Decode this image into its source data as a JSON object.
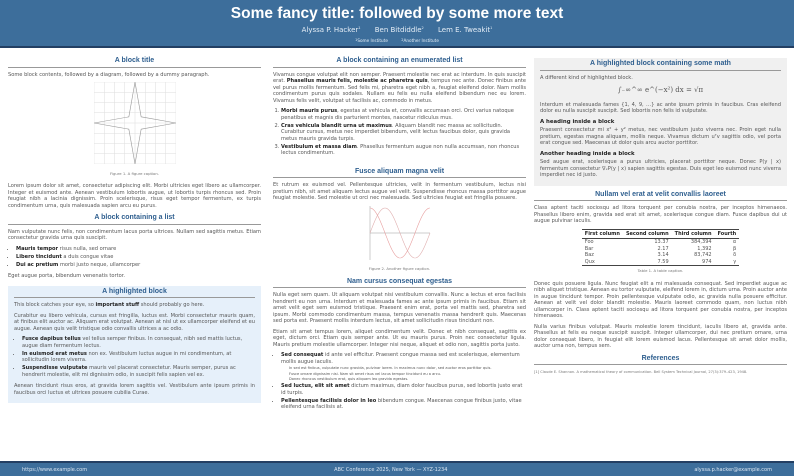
{
  "header": {
    "title": "Some fancy title: followed by some more text",
    "authors": [
      {
        "name": "Alyssa P. Hacker",
        "aff": "1"
      },
      {
        "name": "Ben Bitdiddle",
        "aff": "2"
      },
      {
        "name": "Lem E. Tweakit",
        "aff": "1"
      }
    ],
    "affiliations": [
      {
        "num": "1",
        "name": "Some Institute"
      },
      {
        "num": "2",
        "name": "Another Institute"
      }
    ]
  },
  "col1": {
    "b1_title": "A block title",
    "b1_intro": "Some block contents, followed by a diagram, followed by a dummy paragraph.",
    "b1_caption": "Figure 1. A figure caption.",
    "b1_para": "Lorem ipsum dolor sit amet, consectetur adipiscing elit. Morbi ultricies eget libero ac ullamcorper. Integer et euismod ante. Aenean vestibulum lobortis augue, ut lobortis turpis rhoncus sed. Proin feugiat nibh a lacinia dignissim. Proin scelerisque, risus eget tempor fermentum, ex turpis condimentum urna, quis malesuada sapien arcu eu purus.",
    "b2_title": "A block containing a list",
    "b2_intro": "Nam vulputate nunc felis, non condimentum lacus porta ultrices. Nullam sed sagittis metus. Etiam consectetur gravida urna quis suscipit.",
    "b2_list": [
      {
        "bold": "Mauris tempor",
        "text": " risus nulla, sed ornare"
      },
      {
        "bold": "Libero tincidunt",
        "text": " a duis congue vitae"
      },
      {
        "bold": "Dui ac pretium",
        "text": " morbi justo neque, ullamcorper"
      }
    ],
    "b2_outro": "Eget augue porta, bibendum venenatis tortor.",
    "b3_title": "A highlighted block",
    "b3_p1a": "This block catches your eye, so ",
    "b3_p1b": "important stuff",
    "b3_p1c": " should probably go here.",
    "b3_p2": "Curabitur eu libero vehicula, cursus est fringilla, luctus est. Morbi consectetur mauris quam, at finibus elit auctor ac. Aliquam erat volutpat. Aenean at nisl ut ex ullamcorper eleifend et eu augue. Aenean quis velit tristique odio convallis ultrices a ac odio.",
    "b3_list": [
      {
        "bold": "Fusce dapibus tellus",
        "text": " vel tellus semper finibus. In consequat, nibh sed mattis luctus, augue diam fermentum lectus."
      },
      {
        "bold": "In euismod erat metus",
        "text": " non ex. Vestibulum luctus augue in mi condimentum, at sollicitudin lorem viverra."
      },
      {
        "bold": "Suspendisse vulputate",
        "text": " mauris vel placerat consectetur. Mauris semper, purus ac hendrerit molestie, elit mi dignissim odio, in suscipit felis sapien vel ex."
      }
    ],
    "b3_p3": "Aenean tincidunt risus eros, at gravida lorem sagittis vel. Vestibulum ante ipsum primis in faucibus orci luctus et ultrices posuere cubilia Curae."
  },
  "col2": {
    "b1_title": "A block containing an enumerated list",
    "b1_p1a": "Vivamus congue volutpat elit non semper. Praesent molestie nec erat ac interdum. In quis suscipit erat. ",
    "b1_p1b": "Phasellus mauris felis, molestie ac pharetra quis",
    "b1_p1c": ", tempus nec ante. Donec finibus ante vel purus mollis fermentum. Sed felis mi, pharetra eget nibh a, feugiat eleifend dolor. Nam mollis condimentum purus quis sodales. Nullam eu felis eu nulla eleifend bibendum nec eu lorem. Vivamus felis velit, volutpat ut facilisis ac, commodo in metus.",
    "b1_list": [
      {
        "bold": "Morbi mauris purus",
        "text": ", egestas at vehicula et, convallis accumsan orci. Orci varius natoque penatibus et magnis dis parturient montes, nascetur ridiculus mus."
      },
      {
        "bold": "Cras vehicula blandit urna ut maximus",
        "text": ". Aliquam blandit nec massa ac sollicitudin. Curabitur cursus, metus nec imperdiet bibendum, velit lectus faucibus dolor, quis gravida metus mauris gravida turpis."
      },
      {
        "bold": "Vestibulum et massa diam",
        "text": ". Phasellus fermentum augue non nulla accumsan, non rhoncus lectus condimentum."
      }
    ],
    "b2_title": "Fusce aliquam magna velit",
    "b2_para": "Et rutrum ex euismod vel. Pellentesque ultricies, velit in fermentum vestibulum, lectus nisi pretium nibh, sit amet aliquam lectus augue vel velit. Suspendisse rhoncus massa porttitor augue feugiat molestie. Sed molestie ut orci nec malesuada. Sed ultricies feugiat est fringilla posuere.",
    "b2_caption": "Figure 2. Another figure caption.",
    "b3_title": "Nam cursus consequat egestas",
    "b3_p1": "Nulla eget sem quam. Ut aliquam volutpat nisi vestibulum convallis. Nunc a lectus et eros facilisis hendrerit eu non urna. Interdum et malesuada fames ac ante ipsum primis in faucibus. Etiam sit amet velit eget sem euismod tristique. Praesent enim erat, porta vel mattis sed, pharetra sed ipsum. Morbi commodo condimentum massa, tempus venenatis massa hendrerit quis. Maecenas sed porta est. Praesent mollis interdum lectus, sit amet sollicitudin risus tincidunt non.",
    "b3_p2": "Etiam sit amet tempus lorem, aliquet condimentum velit. Donec et nibh consequat, sagittis ex eget, dictum orci. Etiam quis semper ante. Ut eu mauris purus. Proin nec consectetur ligula. Mauris pretium molestie ullamcorper. Integer nisi neque, aliquet et odio non, sagittis porta justo.",
    "b3_list": [
      {
        "bold": "Sed consequat",
        "text": " id ante vel efficitur. Praesent congue massa sed est scelerisque, elementum mollis augue iaculis.",
        "sub": [
          "In sed est finibus, vulputate nunc gravida, pulvinar lorem. In maximus nunc dolor, sed auctor eros porttitor quis.",
          "Fusce ornare dignissim nisi. Nam sit amet risus vel lacus tempor tincidunt eu a arcu.",
          "Donec rhoncus vestibulum erat, quis aliquam leo gravida egestas."
        ]
      },
      {
        "bold": "Sed luctus, elit sit amet",
        "text": " dictum maximus, diam dolor faucibus purus, sed lobortis justo erat id turpis."
      },
      {
        "bold": "Pellentesque facilisis dolor in leo",
        "text": " bibendum congue. Maecenas congue finibus justo, vitae eleifend urna facilisis at."
      }
    ]
  },
  "col3": {
    "b1_title": "A highlighted block containing some math",
    "b1_intro": "A different kind of highlighted block.",
    "b1_equation": "∫₋∞^∞ e^(−x²) dx = √π",
    "b1_p2": "Interdum et malesuada fames {1, 4, 9, …} ac ante ipsum primis in faucibus. Cras eleifend dolor eu nulla suscipit suscipit. Sed lobortis non felis id vulputate.",
    "h1": "A heading inside a block",
    "h1_text": "Praesent consectetur mi x² + y² metus, nec vestibulum justo viverra nec. Proin eget nulla pretium, egestas magna aliquam, mollis neque. Vivamus dictum uᵀv sagittis odio, vel porta erat congue sed. Maecenas ut dolor quis arcu auctor porttitor.",
    "h2": "Another heading inside a block",
    "h2_text": "Sed augue erat, scelerisque a purus ultricies, placerat porttitor neque. Donec P(y | x) fermentum consectetur ∇ₓP(y | x) sapien sagittis egestas. Duis eget leo euismod nunc viverra imperdiet nec id justo.",
    "b2_title": "Nullam vel erat at velit convallis laoreet",
    "b2_p1": "Class aptent taciti sociosqu ad litora torquent per conubia nostra, per inceptos himenaeos. Phasellus libero enim, gravida sed erat sit amet, scelerisque congue diam. Fusce dapibus dui ut augue pulvinar iaculis.",
    "table": {
      "headers": [
        "First column",
        "Second column",
        "Third column",
        "Fourth"
      ],
      "rows": [
        [
          "Foo",
          "13.37",
          "384,394",
          "α"
        ],
        [
          "Bar",
          "2.17",
          "1,392",
          "β"
        ],
        [
          "Baz",
          "3.14",
          "83,742",
          "δ"
        ],
        [
          "Qux",
          "7.59",
          "974",
          "γ"
        ]
      ]
    },
    "table_caption": "Table 1. A table caption.",
    "b2_p2": "Donec quis posuere ligula. Nunc feugiat elit a mi malesuada consequat. Sed imperdiet augue ac nibh aliquet tristique. Aenean eu tortor vulputate, eleifend lorem in, dictum urna. Proin auctor ante in augue tincidunt tempor. Proin pellentesque vulputate odio, ac gravida nulla posuere efficitur. Aenean at velit vel dolor blandit molestie. Mauris laoreet commodo quam, non luctus nibh ullamcorper in. Class aptent taciti sociosqu ad litora torquent per conubia nostra, per inceptos himenaeos.",
    "b2_p3": "Nulla varius finibus volutpat. Mauris molestie lorem tincidunt, iaculis libero at, gravida ante. Phasellus at felis eu neque suscipit suscipit. Integer ullamcorper, dui nec pretium ornare, urna dolor consequat libero, in feugiat elit lorem euismod lacus. Pellentesque sit amet dolor mollis, auctor urna non, tempus sem.",
    "b3_title": "References",
    "ref1": "[1] Claude E. Shannon. A mathematical theory of communication. Bell System Technical Journal, 27(3):379–423, 1948."
  },
  "footer": {
    "left": "https://www.example.com",
    "center": "ABC Conference 2025, New York — XYZ-1234",
    "right": "alyssa.p.hacker@example.com"
  },
  "colors": {
    "header": "#3d6e9b",
    "block_title": "#2f5f8f",
    "highlight": "#e6f0fa",
    "math_block": "#f0f0f0"
  }
}
